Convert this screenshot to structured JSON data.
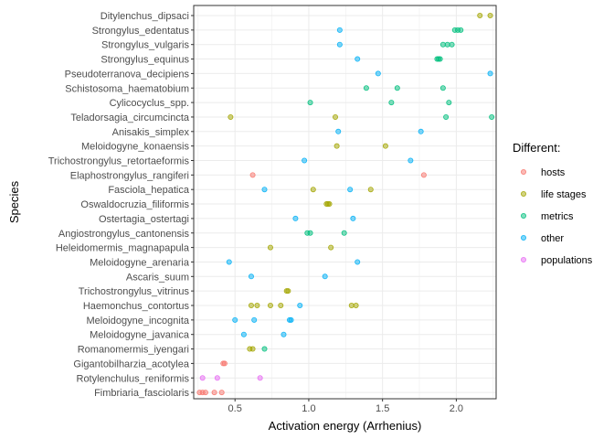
{
  "chart_data": {
    "type": "scatter",
    "title": "",
    "xlabel": "Activation energy (Arrhenius)",
    "ylabel": "Species",
    "xlim": [
      0.22,
      2.27
    ],
    "x_ticks": [
      0.5,
      1.0,
      1.5,
      2.0
    ],
    "x_tick_labels": [
      "0.5",
      "1.0",
      "1.5",
      "2.0"
    ],
    "grid": true,
    "legend": {
      "title": "Different:",
      "position": "right",
      "entries": [
        {
          "key": "hosts",
          "label": "hosts",
          "color": "#F8766D"
        },
        {
          "key": "life stages",
          "label": "life stages",
          "color": "#A3A500"
        },
        {
          "key": "metrics",
          "label": "metrics",
          "color": "#00BF7D"
        },
        {
          "key": "other",
          "label": "other",
          "color": "#00B0F6"
        },
        {
          "key": "populations",
          "label": "populations",
          "color": "#E76BF3"
        }
      ]
    },
    "categories": [
      "Ditylenchus_dipsaci",
      "Strongylus_edentatus",
      "Strongylus_vulgaris",
      "Strongylus_equinus",
      "Pseudoterranova_decipiens",
      "Schistosoma_haematobium",
      "Cylicocyclus_spp.",
      "Teladorsagia_circumcincta",
      "Anisakis_simplex",
      "Meloidogyne_konaensis",
      "Trichostrongylus_retortaeformis",
      "Elaphostrongylus_rangiferi",
      "Fasciola_hepatica",
      "Oswaldocruzia_filiformis",
      "Ostertagia_ostertagi",
      "Angiostrongylus_cantonensis",
      "Heleidomermis_magnapapula",
      "Meloidogyne_arenaria",
      "Ascaris_suum",
      "Trichostrongylus_vitrinus",
      "Haemonchus_contortus",
      "Meloidogyne_incognita",
      "Meloidogyne_javanica",
      "Romanomermis_iyengari",
      "Gigantobilharzia_acotylea",
      "Rotylenchulus_reniformis",
      "Fimbriaria_fasciolaris"
    ],
    "points": [
      {
        "species": "Ditylenchus_dipsaci",
        "x": 2.16,
        "group": "life stages"
      },
      {
        "species": "Ditylenchus_dipsaci",
        "x": 2.23,
        "group": "life stages"
      },
      {
        "species": "Strongylus_edentatus",
        "x": 1.21,
        "group": "other"
      },
      {
        "species": "Strongylus_edentatus",
        "x": 1.99,
        "group": "metrics"
      },
      {
        "species": "Strongylus_edentatus",
        "x": 2.01,
        "group": "metrics"
      },
      {
        "species": "Strongylus_edentatus",
        "x": 2.03,
        "group": "metrics"
      },
      {
        "species": "Strongylus_vulgaris",
        "x": 1.21,
        "group": "other"
      },
      {
        "species": "Strongylus_vulgaris",
        "x": 1.91,
        "group": "metrics"
      },
      {
        "species": "Strongylus_vulgaris",
        "x": 1.94,
        "group": "metrics"
      },
      {
        "species": "Strongylus_vulgaris",
        "x": 1.97,
        "group": "metrics"
      },
      {
        "species": "Strongylus_equinus",
        "x": 1.33,
        "group": "other"
      },
      {
        "species": "Strongylus_equinus",
        "x": 1.87,
        "group": "metrics"
      },
      {
        "species": "Strongylus_equinus",
        "x": 1.88,
        "group": "metrics"
      },
      {
        "species": "Strongylus_equinus",
        "x": 1.89,
        "group": "metrics"
      },
      {
        "species": "Pseudoterranova_decipiens",
        "x": 1.47,
        "group": "other"
      },
      {
        "species": "Pseudoterranova_decipiens",
        "x": 2.23,
        "group": "other"
      },
      {
        "species": "Schistosoma_haematobium",
        "x": 1.39,
        "group": "metrics"
      },
      {
        "species": "Schistosoma_haematobium",
        "x": 1.6,
        "group": "metrics"
      },
      {
        "species": "Schistosoma_haematobium",
        "x": 1.91,
        "group": "metrics"
      },
      {
        "species": "Cylicocyclus_spp.",
        "x": 1.01,
        "group": "metrics"
      },
      {
        "species": "Cylicocyclus_spp.",
        "x": 1.56,
        "group": "metrics"
      },
      {
        "species": "Cylicocyclus_spp.",
        "x": 1.95,
        "group": "metrics"
      },
      {
        "species": "Teladorsagia_circumcincta",
        "x": 0.47,
        "group": "life stages"
      },
      {
        "species": "Teladorsagia_circumcincta",
        "x": 1.18,
        "group": "life stages"
      },
      {
        "species": "Teladorsagia_circumcincta",
        "x": 1.93,
        "group": "metrics"
      },
      {
        "species": "Teladorsagia_circumcincta",
        "x": 2.24,
        "group": "metrics"
      },
      {
        "species": "Anisakis_simplex",
        "x": 1.2,
        "group": "other"
      },
      {
        "species": "Anisakis_simplex",
        "x": 1.76,
        "group": "other"
      },
      {
        "species": "Meloidogyne_konaensis",
        "x": 1.19,
        "group": "life stages"
      },
      {
        "species": "Meloidogyne_konaensis",
        "x": 1.52,
        "group": "life stages"
      },
      {
        "species": "Trichostrongylus_retortaeformis",
        "x": 0.97,
        "group": "other"
      },
      {
        "species": "Trichostrongylus_retortaeformis",
        "x": 1.69,
        "group": "other"
      },
      {
        "species": "Elaphostrongylus_rangiferi",
        "x": 0.62,
        "group": "hosts"
      },
      {
        "species": "Elaphostrongylus_rangiferi",
        "x": 1.78,
        "group": "hosts"
      },
      {
        "species": "Fasciola_hepatica",
        "x": 0.7,
        "group": "other"
      },
      {
        "species": "Fasciola_hepatica",
        "x": 1.03,
        "group": "life stages"
      },
      {
        "species": "Fasciola_hepatica",
        "x": 1.28,
        "group": "other"
      },
      {
        "species": "Fasciola_hepatica",
        "x": 1.42,
        "group": "life stages"
      },
      {
        "species": "Oswaldocruzia_filiformis",
        "x": 1.12,
        "group": "life stages"
      },
      {
        "species": "Oswaldocruzia_filiformis",
        "x": 1.13,
        "group": "life stages"
      },
      {
        "species": "Oswaldocruzia_filiformis",
        "x": 1.14,
        "group": "life stages"
      },
      {
        "species": "Ostertagia_ostertagi",
        "x": 0.91,
        "group": "other"
      },
      {
        "species": "Ostertagia_ostertagi",
        "x": 1.3,
        "group": "other"
      },
      {
        "species": "Angiostrongylus_cantonensis",
        "x": 0.99,
        "group": "metrics"
      },
      {
        "species": "Angiostrongylus_cantonensis",
        "x": 1.01,
        "group": "metrics"
      },
      {
        "species": "Angiostrongylus_cantonensis",
        "x": 1.24,
        "group": "metrics"
      },
      {
        "species": "Heleidomermis_magnapapula",
        "x": 0.74,
        "group": "life stages"
      },
      {
        "species": "Heleidomermis_magnapapula",
        "x": 1.15,
        "group": "life stages"
      },
      {
        "species": "Meloidogyne_arenaria",
        "x": 0.46,
        "group": "other"
      },
      {
        "species": "Meloidogyne_arenaria",
        "x": 1.33,
        "group": "other"
      },
      {
        "species": "Ascaris_suum",
        "x": 0.61,
        "group": "other"
      },
      {
        "species": "Ascaris_suum",
        "x": 1.11,
        "group": "other"
      },
      {
        "species": "Trichostrongylus_vitrinus",
        "x": 0.85,
        "group": "life stages"
      },
      {
        "species": "Trichostrongylus_vitrinus",
        "x": 0.86,
        "group": "life stages"
      },
      {
        "species": "Haemonchus_contortus",
        "x": 0.61,
        "group": "life stages"
      },
      {
        "species": "Haemonchus_contortus",
        "x": 0.65,
        "group": "life stages"
      },
      {
        "species": "Haemonchus_contortus",
        "x": 0.74,
        "group": "life stages"
      },
      {
        "species": "Haemonchus_contortus",
        "x": 0.81,
        "group": "life stages"
      },
      {
        "species": "Haemonchus_contortus",
        "x": 0.94,
        "group": "other"
      },
      {
        "species": "Haemonchus_contortus",
        "x": 1.29,
        "group": "life stages"
      },
      {
        "species": "Haemonchus_contortus",
        "x": 1.32,
        "group": "life stages"
      },
      {
        "species": "Meloidogyne_incognita",
        "x": 0.5,
        "group": "other"
      },
      {
        "species": "Meloidogyne_incognita",
        "x": 0.63,
        "group": "other"
      },
      {
        "species": "Meloidogyne_incognita",
        "x": 0.87,
        "group": "other"
      },
      {
        "species": "Meloidogyne_incognita",
        "x": 0.88,
        "group": "other"
      },
      {
        "species": "Meloidogyne_javanica",
        "x": 0.56,
        "group": "other"
      },
      {
        "species": "Meloidogyne_javanica",
        "x": 0.83,
        "group": "other"
      },
      {
        "species": "Romanomermis_iyengari",
        "x": 0.6,
        "group": "life stages"
      },
      {
        "species": "Romanomermis_iyengari",
        "x": 0.62,
        "group": "life stages"
      },
      {
        "species": "Romanomermis_iyengari",
        "x": 0.7,
        "group": "metrics"
      },
      {
        "species": "Gigantobilharzia_acotylea",
        "x": 0.42,
        "group": "hosts"
      },
      {
        "species": "Gigantobilharzia_acotylea",
        "x": 0.43,
        "group": "hosts"
      },
      {
        "species": "Rotylenchulus_reniformis",
        "x": 0.28,
        "group": "populations"
      },
      {
        "species": "Rotylenchulus_reniformis",
        "x": 0.38,
        "group": "populations"
      },
      {
        "species": "Rotylenchulus_reniformis",
        "x": 0.67,
        "group": "populations"
      },
      {
        "species": "Fimbriaria_fasciolaris",
        "x": 0.26,
        "group": "hosts"
      },
      {
        "species": "Fimbriaria_fasciolaris",
        "x": 0.28,
        "group": "hosts"
      },
      {
        "species": "Fimbriaria_fasciolaris",
        "x": 0.3,
        "group": "hosts"
      },
      {
        "species": "Fimbriaria_fasciolaris",
        "x": 0.36,
        "group": "hosts"
      },
      {
        "species": "Fimbriaria_fasciolaris",
        "x": 0.41,
        "group": "hosts"
      }
    ]
  }
}
